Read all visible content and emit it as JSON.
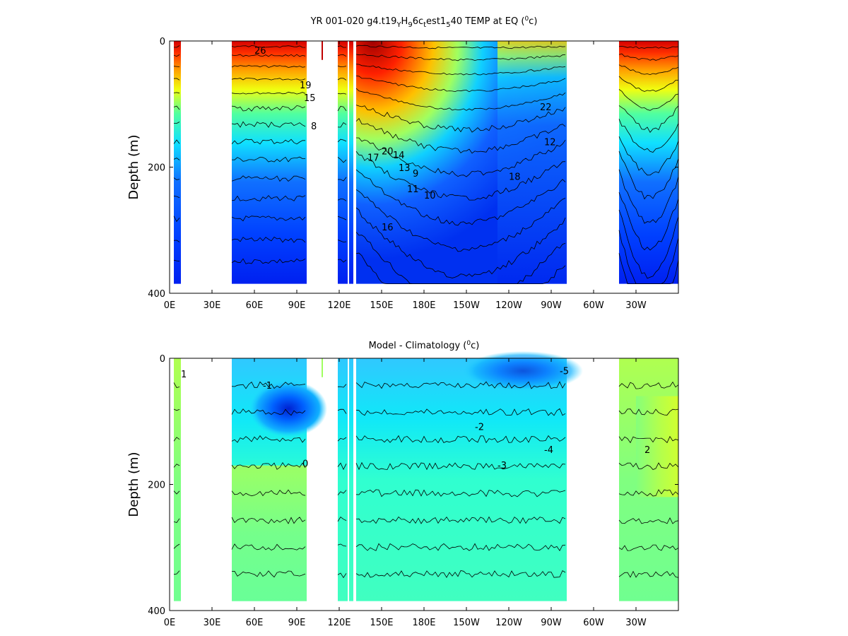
{
  "figure": {
    "top_title": "YR 001-020 g4.t19",
    "top_title_sub_a": "Y",
    "top_title_mid": "H",
    "top_title_sub_b": "9",
    "top_title_mid2": "6c",
    "top_title_sub_c": "t",
    "top_title_mid3": "est1",
    "top_title_sub_d": "5",
    "top_title_end": "40 TEMP at EQ (",
    "bottom_title": "Model - Climatology (",
    "degree_sup": "0",
    "unit_tail": "c)"
  },
  "chart_data": [
    {
      "type": "heatmap",
      "title": "YR 001-020 g4.t19YH96ctest1540 TEMP at EQ (0c)",
      "xlabel": "",
      "ylabel": "Depth (m)",
      "x_ticks": [
        "0E",
        "30E",
        "60E",
        "90E",
        "120E",
        "150E",
        "180E",
        "150W",
        "120W",
        "90W",
        "60W",
        "30W"
      ],
      "x_tick_lon": [
        0,
        30,
        60,
        90,
        120,
        150,
        180,
        210,
        240,
        270,
        300,
        330
      ],
      "xlim_lon": [
        0,
        360
      ],
      "y_ticks": [
        0,
        200,
        400
      ],
      "ylim": [
        0,
        400
      ],
      "y_reversed": true,
      "colormap": "jet",
      "value_range_C": [
        8,
        30
      ],
      "data_extent_depth_m": [
        0,
        385
      ],
      "ocean_segments_lon": [
        [
          3,
          8
        ],
        [
          44,
          97
        ],
        [
          119,
          126
        ],
        [
          127,
          130
        ],
        [
          132,
          281
        ],
        [
          318,
          360
        ]
      ],
      "contour_labels": [
        "26",
        "19",
        "20",
        "14",
        "13",
        "11",
        "10",
        "18",
        "12",
        "22",
        "16",
        "15",
        "17",
        "9",
        "8"
      ]
    },
    {
      "type": "heatmap",
      "title": "Model - Climatology (0c)",
      "xlabel": "",
      "ylabel": "Depth (m)",
      "x_ticks": [
        "0E",
        "30E",
        "60E",
        "90E",
        "120E",
        "150E",
        "180E",
        "150W",
        "120W",
        "90W",
        "60W",
        "30W"
      ],
      "x_tick_lon": [
        0,
        30,
        60,
        90,
        120,
        150,
        180,
        210,
        240,
        270,
        300,
        330
      ],
      "xlim_lon": [
        0,
        360
      ],
      "y_ticks": [
        0,
        200,
        400
      ],
      "ylim": [
        0,
        400
      ],
      "y_reversed": true,
      "colormap": "jet",
      "value_range_C": [
        -6,
        3
      ],
      "data_extent_depth_m": [
        0,
        385
      ],
      "ocean_segments_lon": [
        [
          3,
          8
        ],
        [
          44,
          97
        ],
        [
          119,
          126
        ],
        [
          127,
          130
        ],
        [
          132,
          281
        ],
        [
          318,
          360
        ]
      ],
      "contour_labels": [
        "-1",
        "0",
        "-2",
        "-3",
        "-4",
        "-5",
        "1",
        "2"
      ]
    }
  ]
}
